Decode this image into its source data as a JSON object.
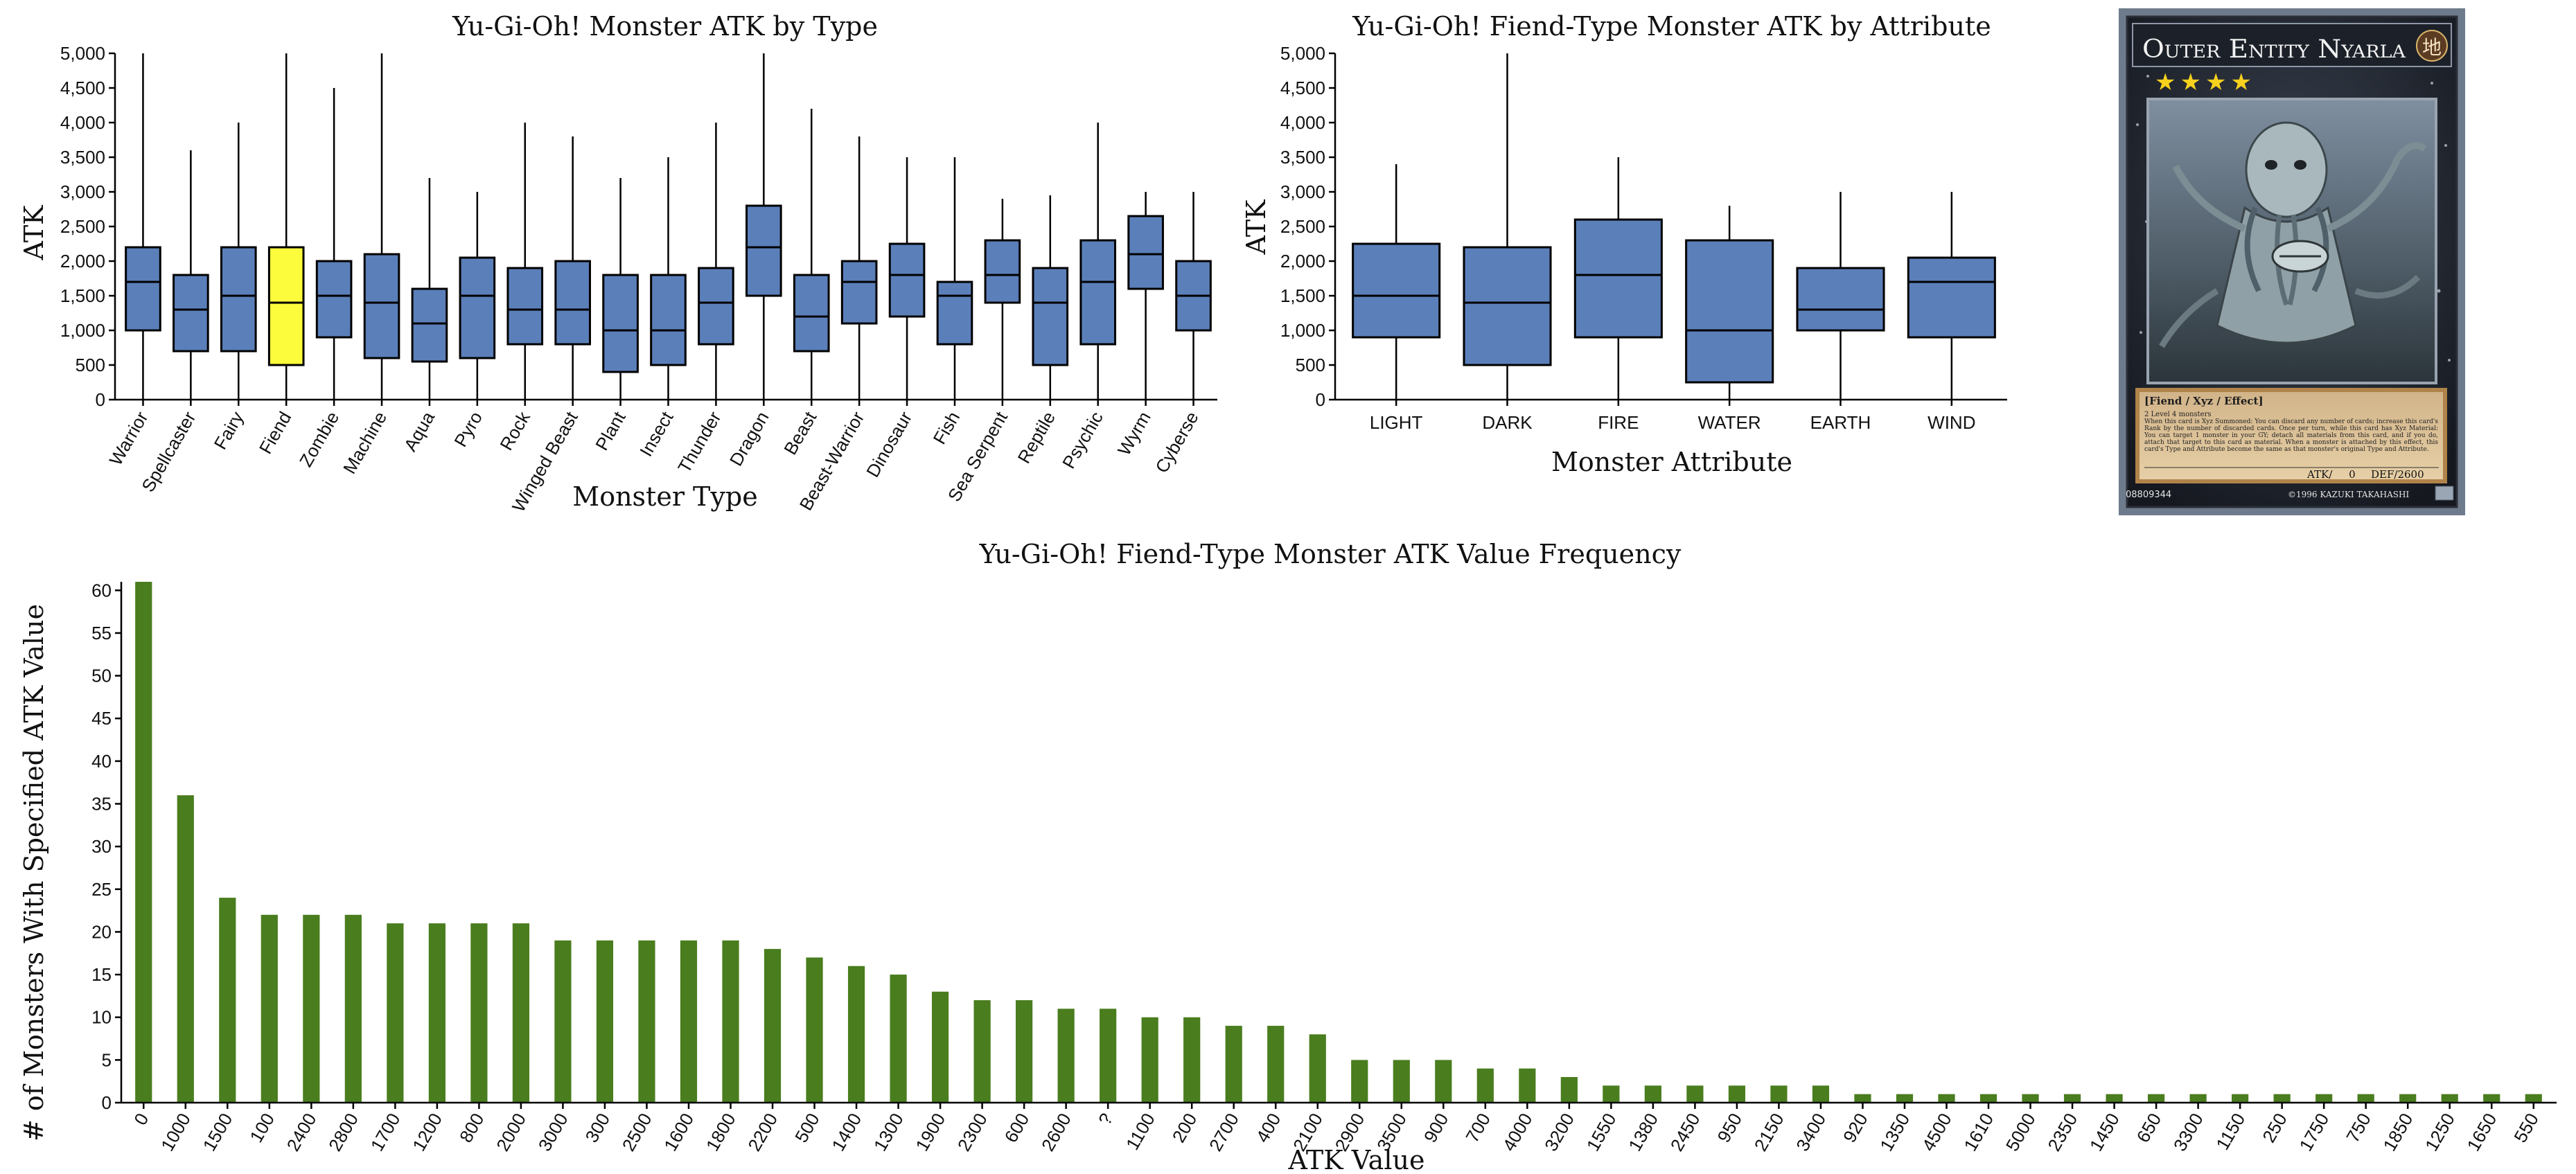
{
  "colors": {
    "box_fill": "#5b7fb9",
    "highlight_fill": "#fcfc3d",
    "bar_fill": "#4a7d1e",
    "axis": "#000000"
  },
  "chart_data": [
    {
      "type": "box",
      "title": "Yu-Gi-Oh! Monster ATK by Type",
      "xlabel": "Monster Type",
      "ylabel": "ATK",
      "ylim": [
        0,
        5000
      ],
      "yticks": [
        "0",
        "500",
        "1,000",
        "1,500",
        "2,000",
        "2,500",
        "3,000",
        "3,500",
        "4,000",
        "4,500",
        "5,000"
      ],
      "highlight": "Fiend",
      "categories": [
        "Warrior",
        "Spellcaster",
        "Fairy",
        "Fiend",
        "Zombie",
        "Machine",
        "Aqua",
        "Pyro",
        "Rock",
        "Winged Beast",
        "Plant",
        "Insect",
        "Thunder",
        "Dragon",
        "Beast",
        "Beast-Warrior",
        "Dinosaur",
        "Fish",
        "Sea Serpent",
        "Reptile",
        "Psychic",
        "Wyrm",
        "Cyberse"
      ],
      "boxes": [
        {
          "min": 0,
          "q1": 1000,
          "median": 1700,
          "q3": 2200,
          "max": 5000
        },
        {
          "min": 0,
          "q1": 700,
          "median": 1300,
          "q3": 1800,
          "max": 3600
        },
        {
          "min": 0,
          "q1": 700,
          "median": 1500,
          "q3": 2200,
          "max": 4000
        },
        {
          "min": 0,
          "q1": 500,
          "median": 1400,
          "q3": 2200,
          "max": 5000
        },
        {
          "min": 0,
          "q1": 900,
          "median": 1500,
          "q3": 2000,
          "max": 4500
        },
        {
          "min": 0,
          "q1": 600,
          "median": 1400,
          "q3": 2100,
          "max": 5000
        },
        {
          "min": 0,
          "q1": 550,
          "median": 1100,
          "q3": 1600,
          "max": 3200
        },
        {
          "min": 0,
          "q1": 600,
          "median": 1500,
          "q3": 2050,
          "max": 3000
        },
        {
          "min": 0,
          "q1": 800,
          "median": 1300,
          "q3": 1900,
          "max": 4000
        },
        {
          "min": 0,
          "q1": 800,
          "median": 1300,
          "q3": 2000,
          "max": 3800
        },
        {
          "min": 0,
          "q1": 400,
          "median": 1000,
          "q3": 1800,
          "max": 3200
        },
        {
          "min": 0,
          "q1": 500,
          "median": 1000,
          "q3": 1800,
          "max": 3500
        },
        {
          "min": 0,
          "q1": 800,
          "median": 1400,
          "q3": 1900,
          "max": 4000
        },
        {
          "min": 0,
          "q1": 1500,
          "median": 2200,
          "q3": 2800,
          "max": 5000
        },
        {
          "min": 0,
          "q1": 700,
          "median": 1200,
          "q3": 1800,
          "max": 4200
        },
        {
          "min": 0,
          "q1": 1100,
          "median": 1700,
          "q3": 2000,
          "max": 3800
        },
        {
          "min": 0,
          "q1": 1200,
          "median": 1800,
          "q3": 2250,
          "max": 3500
        },
        {
          "min": 0,
          "q1": 800,
          "median": 1500,
          "q3": 1700,
          "max": 3500
        },
        {
          "min": 0,
          "q1": 1400,
          "median": 1800,
          "q3": 2300,
          "max": 2900
        },
        {
          "min": 0,
          "q1": 500,
          "median": 1400,
          "q3": 1900,
          "max": 2950
        },
        {
          "min": 0,
          "q1": 800,
          "median": 1700,
          "q3": 2300,
          "max": 4000
        },
        {
          "min": 0,
          "q1": 1600,
          "median": 2100,
          "q3": 2650,
          "max": 3000
        },
        {
          "min": 0,
          "q1": 1000,
          "median": 1500,
          "q3": 2000,
          "max": 3000
        }
      ]
    },
    {
      "type": "box",
      "title": "Yu-Gi-Oh! Fiend-Type Monster ATK by Attribute",
      "xlabel": "Monster Attribute",
      "ylabel": "ATK",
      "ylim": [
        0,
        5000
      ],
      "yticks": [
        "0",
        "500",
        "1,000",
        "1,500",
        "2,000",
        "2,500",
        "3,000",
        "3,500",
        "4,000",
        "4,500",
        "5,000"
      ],
      "categories": [
        "LIGHT",
        "DARK",
        "FIRE",
        "WATER",
        "EARTH",
        "WIND"
      ],
      "boxes": [
        {
          "min": 0,
          "q1": 900,
          "median": 1500,
          "q3": 2250,
          "max": 3400
        },
        {
          "min": 0,
          "q1": 500,
          "median": 1400,
          "q3": 2200,
          "max": 5000
        },
        {
          "min": 0,
          "q1": 900,
          "median": 1800,
          "q3": 2600,
          "max": 3500
        },
        {
          "min": 0,
          "q1": 250,
          "median": 1000,
          "q3": 2300,
          "max": 2800
        },
        {
          "min": 0,
          "q1": 1000,
          "median": 1300,
          "q3": 1900,
          "max": 3000
        },
        {
          "min": 0,
          "q1": 900,
          "median": 1700,
          "q3": 2050,
          "max": 3000
        }
      ]
    },
    {
      "type": "bar",
      "title": "Yu-Gi-Oh! Fiend-Type Monster ATK Value Frequency",
      "xlabel": "ATK Value",
      "ylabel": "# of Monsters With Specified ATK Value",
      "ylim": [
        0,
        61
      ],
      "yticks": [
        "0",
        "5",
        "10",
        "15",
        "20",
        "25",
        "30",
        "35",
        "40",
        "45",
        "50",
        "55",
        "60"
      ],
      "categories": [
        "0",
        "1000",
        "1500",
        "100",
        "2400",
        "2800",
        "1700",
        "1200",
        "800",
        "2000",
        "3000",
        "300",
        "2500",
        "1600",
        "1800",
        "2200",
        "500",
        "1400",
        "1300",
        "1900",
        "2300",
        "600",
        "2600",
        "?",
        "1100",
        "200",
        "2700",
        "400",
        "2100",
        "2900",
        "3500",
        "900",
        "700",
        "4000",
        "3200",
        "1550",
        "1380",
        "2450",
        "950",
        "2150",
        "3400",
        "920",
        "1350",
        "4500",
        "1610",
        "5000",
        "2350",
        "1450",
        "650",
        "3300",
        "1150",
        "250",
        "1750",
        "750",
        "1850",
        "1250",
        "1650",
        "550"
      ],
      "values": [
        61,
        36,
        24,
        22,
        22,
        22,
        21,
        21,
        21,
        21,
        19,
        19,
        19,
        19,
        19,
        18,
        17,
        16,
        15,
        13,
        12,
        12,
        11,
        11,
        10,
        10,
        9,
        9,
        8,
        5,
        5,
        5,
        4,
        4,
        3,
        2,
        2,
        2,
        2,
        2,
        2,
        1,
        1,
        1,
        1,
        1,
        1,
        1,
        1,
        1,
        1,
        1,
        1,
        1,
        1,
        1,
        1,
        1
      ]
    }
  ],
  "card": {
    "name": "Outer Entity Nyarla",
    "attribute_glyph": "地",
    "stars": "★★★★",
    "type_line": "[Fiend / Xyz / Effect]",
    "materials": "2 Level 4 monsters",
    "effect": "When this card is Xyz Summoned: You can discard any number of cards; increase this card's Rank by the number of discarded cards. Once per turn, while this card has Xyz Material: You can target 1 monster in your GY; detach all materials from this card, and if you do, attach that target to this card as material. When a monster is attached by this effect, this card's Type and Attribute become the same as that monster's original Type and Attribute.",
    "atk": "ATK/     0",
    "def": "DEF/2600",
    "serial": "08809344",
    "copyright": "©1996 KAZUKI TAKAHASHI"
  }
}
